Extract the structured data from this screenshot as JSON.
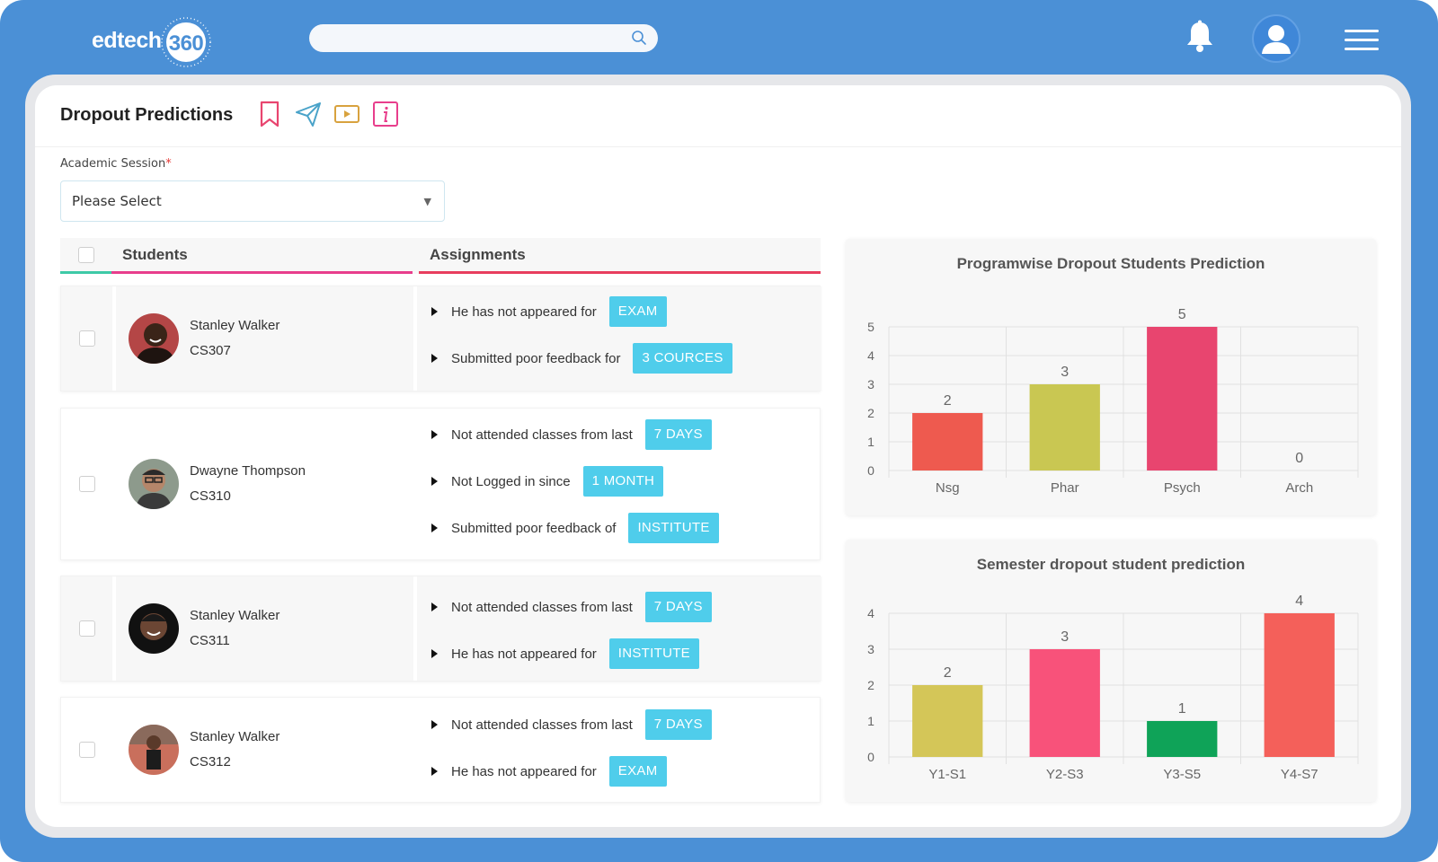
{
  "app": {
    "logo_text": "edtech",
    "logo_number": "360",
    "search": {
      "placeholder": ""
    }
  },
  "page": {
    "title": "Dropout Predictions",
    "session_label": "Academic Session",
    "session_required_mark": "*",
    "session_value": "Please Select"
  },
  "table": {
    "headers": {
      "students": "Students",
      "assignments": "Assignments"
    },
    "rows": [
      {
        "name": "Stanley Walker",
        "code": "CS307",
        "items": [
          {
            "text": "He has not appeared for",
            "badge": "EXAM"
          },
          {
            "text": "Submitted poor feedback for",
            "badge": "3 COURCES"
          }
        ]
      },
      {
        "name": "Dwayne Thompson",
        "code": "CS310",
        "items": [
          {
            "text": "Not attended classes from last",
            "badge": "7 DAYS"
          },
          {
            "text": "Not Logged in since",
            "badge": "1 MONTH"
          },
          {
            "text": "Submitted poor feedback of",
            "badge": "INSTITUTE"
          }
        ]
      },
      {
        "name": "Stanley Walker",
        "code": "CS311",
        "items": [
          {
            "text": "Not attended classes from last",
            "badge": "7 DAYS"
          },
          {
            "text": "He has not appeared for",
            "badge": "INSTITUTE"
          }
        ]
      },
      {
        "name": "Stanley Walker",
        "code": "CS312",
        "items": [
          {
            "text": "Not attended classes from last",
            "badge": "7 DAYS"
          },
          {
            "text": "He has not appeared for",
            "badge": "EXAM"
          }
        ]
      }
    ]
  },
  "chart_data": [
    {
      "type": "bar",
      "title": "Programwise Dropout Students Prediction",
      "categories": [
        "Nsg",
        "Phar",
        "Psych",
        "Arch"
      ],
      "values": [
        2,
        3,
        5,
        0
      ],
      "colors": [
        "#ee5a4f",
        "#c9c752",
        "#e8456f",
        "#999999"
      ],
      "ylim": [
        0,
        5
      ],
      "yticks": [
        0,
        1,
        2,
        3,
        4,
        5
      ]
    },
    {
      "type": "bar",
      "title": "Semester dropout student prediction",
      "categories": [
        "Y1-S1",
        "Y2-S3",
        "Y3-S5",
        "Y4-S7"
      ],
      "values": [
        2,
        3,
        1,
        4
      ],
      "colors": [
        "#d4c658",
        "#f8527a",
        "#0fa358",
        "#f4605a"
      ],
      "ylim": [
        0,
        4
      ],
      "yticks": [
        0,
        1,
        2,
        3,
        4
      ]
    }
  ]
}
